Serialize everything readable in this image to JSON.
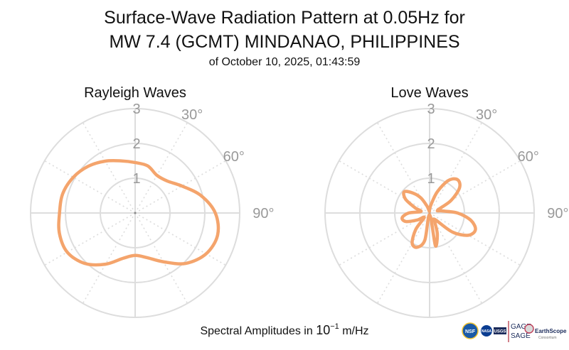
{
  "title": {
    "line1": "Surface-Wave Radiation Pattern at 0.05Hz for",
    "line2": "MW 7.4 (GCMT) MINDANAO, PHILIPPINES",
    "subtitle": "of October 10, 2025, 01:43:59"
  },
  "footer": {
    "label_prefix": "Spectral Amplitudes in ",
    "label_power_base": "10",
    "label_power_exp": "−1",
    "label_suffix": " m/Hz"
  },
  "logos": {
    "nsf": "NSF",
    "nasa": "NASA",
    "usgs": "USGS",
    "gage": "GAGE",
    "sage": "SAGE",
    "earthscope": "EarthScope",
    "earthscope_sub": "Consortium"
  },
  "colors": {
    "curve": "#f4a46c",
    "grid": "#dddddd",
    "tick": "#999999",
    "text": "#111111"
  },
  "chart_data": [
    {
      "type": "polar-line",
      "title": "Rayleigh Waves",
      "r_ticks": [
        "1",
        "2",
        "3"
      ],
      "r_max": 3,
      "angle_ticks": [
        "30°",
        "60°",
        "90°"
      ],
      "angle_tick_values": [
        30,
        60,
        90
      ],
      "theta_deg": [
        0,
        15,
        30,
        45,
        60,
        75,
        90,
        105,
        120,
        135,
        150,
        165,
        180,
        195,
        210,
        225,
        240,
        255,
        270,
        285,
        300,
        315,
        330,
        345
      ],
      "r": [
        1.45,
        1.4,
        1.25,
        1.3,
        1.55,
        1.95,
        2.3,
        2.45,
        2.35,
        2.05,
        1.62,
        1.33,
        1.22,
        1.35,
        1.7,
        2.05,
        2.25,
        2.25,
        2.17,
        2.15,
        2.05,
        1.9,
        1.72,
        1.55
      ]
    },
    {
      "type": "polar-line",
      "title": "Love Waves",
      "r_ticks": [
        "1",
        "2",
        "3"
      ],
      "r_max": 3,
      "angle_ticks": [
        "30°",
        "60°",
        "90°"
      ],
      "angle_tick_values": [
        30,
        60,
        90
      ],
      "theta_deg": [
        0,
        10,
        20,
        30,
        40,
        50,
        60,
        70,
        80,
        90,
        100,
        110,
        120,
        130,
        140,
        150,
        160,
        170,
        180,
        190,
        200,
        210,
        220,
        230,
        240,
        250,
        260,
        270,
        280,
        290,
        300,
        310,
        320,
        330,
        340,
        350
      ],
      "r": [
        0.1,
        0.25,
        0.65,
        1.08,
        1.25,
        1.12,
        0.7,
        0.25,
        0.35,
        0.8,
        1.2,
        1.4,
        1.28,
        0.85,
        0.25,
        0.3,
        0.65,
        0.95,
        0.05,
        0.8,
        1.05,
        1.0,
        0.62,
        0.2,
        0.4,
        0.72,
        0.8,
        0.6,
        0.25,
        0.45,
        0.8,
        0.95,
        0.75,
        0.5,
        0.2,
        0.05
      ]
    }
  ]
}
